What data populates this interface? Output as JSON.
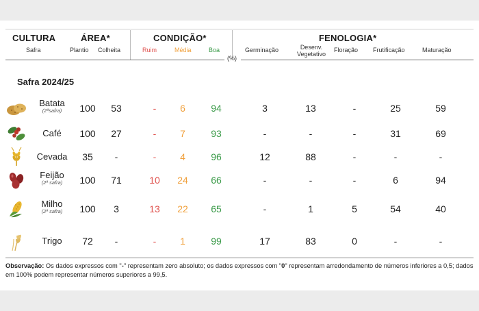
{
  "headers": {
    "cultura": "CULTURA",
    "cultura_sub": "Safra",
    "area": "ÁREA*",
    "area_sub": [
      "Plantio",
      "Colheita"
    ],
    "condicao": "CONDIÇÃO*",
    "condicao_sub": [
      "Ruim",
      "Média",
      "Boa"
    ],
    "fenologia": "FENOLOGIA*",
    "fenologia_sub": [
      "Germinação",
      "Desenv. Vegetativo",
      "Floração",
      "Frutificação",
      "Maturação"
    ],
    "percent": "(%)"
  },
  "safra_title": "Safra 2024/25",
  "rows": [
    {
      "crop": "Batata",
      "note": "(2ªsafra)",
      "icon": "potato-icon",
      "plantio": "100",
      "colheita": "53",
      "ruim": "-",
      "media": "6",
      "boa": "94",
      "germ": "3",
      "desenv": "13",
      "flor": "-",
      "frut": "25",
      "mat": "59"
    },
    {
      "crop": "Café",
      "note": "",
      "icon": "coffee-icon",
      "plantio": "100",
      "colheita": "27",
      "ruim": "-",
      "media": "7",
      "boa": "93",
      "germ": "-",
      "desenv": "-",
      "flor": "-",
      "frut": "31",
      "mat": "69"
    },
    {
      "crop": "Cevada",
      "note": "",
      "icon": "barley-icon",
      "plantio": "35",
      "colheita": "-",
      "ruim": "-",
      "media": "4",
      "boa": "96",
      "germ": "12",
      "desenv": "88",
      "flor": "-",
      "frut": "-",
      "mat": "-"
    },
    {
      "crop": "Feijão",
      "note": "(2ª safra)",
      "icon": "bean-icon",
      "plantio": "100",
      "colheita": "71",
      "ruim": "10",
      "media": "24",
      "boa": "66",
      "germ": "-",
      "desenv": "-",
      "flor": "-",
      "frut": "6",
      "mat": "94"
    },
    {
      "crop": "Milho",
      "note": "(2ª safra)",
      "icon": "corn-icon",
      "plantio": "100",
      "colheita": "3",
      "ruim": "13",
      "media": "22",
      "boa": "65",
      "germ": "-",
      "desenv": "1",
      "flor": "5",
      "frut": "54",
      "mat": "40"
    },
    {
      "crop": "Trigo",
      "note": "",
      "icon": "wheat-icon",
      "plantio": "72",
      "colheita": "-",
      "ruim": "-",
      "media": "1",
      "boa": "99",
      "germ": "17",
      "desenv": "83",
      "flor": "0",
      "frut": "-",
      "mat": "-"
    }
  ],
  "observation": {
    "label": "Observação:",
    "text_1": " Os dados expressos com \"",
    "dash": "-",
    "text_2": "\" representam zero absoluto; os dados expressos com \"",
    "zero": "0",
    "text_3": "\" representam arredondamento de números inferiores a 0,5; dados em 100% podem representar números superiores a 99,5."
  },
  "colors": {
    "ruim": "#e0534f",
    "media": "#f0a03c",
    "boa": "#3a9a48"
  }
}
